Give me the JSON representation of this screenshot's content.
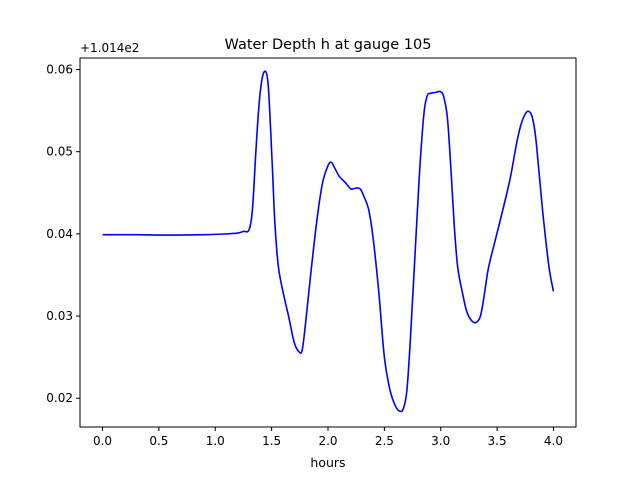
{
  "chart_data": {
    "type": "line",
    "title": "Water Depth h at gauge 105",
    "xlabel": "hours",
    "ylabel": "",
    "offset_label": "+1.014e2",
    "xlim": [
      -0.2,
      4.2
    ],
    "ylim": [
      0.0165,
      0.0614
    ],
    "xticks": [
      0.0,
      0.5,
      1.0,
      1.5,
      2.0,
      2.5,
      3.0,
      3.5,
      4.0
    ],
    "xtick_labels": [
      "0.0",
      "0.5",
      "1.0",
      "1.5",
      "2.0",
      "2.5",
      "3.0",
      "3.5",
      "4.0"
    ],
    "yticks": [
      0.02,
      0.03,
      0.04,
      0.05,
      0.06
    ],
    "ytick_labels": [
      "0.02",
      "0.03",
      "0.04",
      "0.05",
      "0.06"
    ],
    "grid": false,
    "series": [
      {
        "color": "#0000ff",
        "x": [
          0.0,
          0.3,
          0.6,
          0.9,
          1.1,
          1.2,
          1.25,
          1.3,
          1.33,
          1.36,
          1.39,
          1.42,
          1.45,
          1.47,
          1.49,
          1.51,
          1.53,
          1.56,
          1.6,
          1.65,
          1.7,
          1.74,
          1.77,
          1.8,
          1.85,
          1.9,
          1.95,
          2.0,
          2.03,
          2.06,
          2.1,
          2.15,
          2.2,
          2.23,
          2.26,
          2.29,
          2.32,
          2.36,
          2.4,
          2.45,
          2.5,
          2.55,
          2.6,
          2.64,
          2.67,
          2.7,
          2.73,
          2.77,
          2.81,
          2.85,
          2.88,
          2.91,
          2.95,
          3.0,
          3.03,
          3.06,
          3.09,
          3.12,
          3.15,
          3.19,
          3.23,
          3.27,
          3.31,
          3.35,
          3.38,
          3.42,
          3.47,
          3.52,
          3.57,
          3.62,
          3.67,
          3.71,
          3.75,
          3.78,
          3.81,
          3.84,
          3.87,
          3.91,
          3.96,
          4.0
        ],
        "y": [
          0.0399,
          0.0399,
          0.03985,
          0.0399,
          0.04,
          0.0401,
          0.0403,
          0.0405,
          0.043,
          0.05,
          0.056,
          0.0592,
          0.0597,
          0.058,
          0.053,
          0.047,
          0.041,
          0.036,
          0.033,
          0.03,
          0.0268,
          0.0257,
          0.0258,
          0.029,
          0.0355,
          0.0415,
          0.0461,
          0.0483,
          0.0487,
          0.048,
          0.047,
          0.0463,
          0.0455,
          0.0455,
          0.0456,
          0.0454,
          0.0445,
          0.043,
          0.0395,
          0.033,
          0.025,
          0.021,
          0.019,
          0.0184,
          0.0188,
          0.021,
          0.027,
          0.037,
          0.047,
          0.0545,
          0.0568,
          0.0571,
          0.0572,
          0.0573,
          0.0565,
          0.054,
          0.048,
          0.041,
          0.036,
          0.033,
          0.0306,
          0.0295,
          0.0292,
          0.0299,
          0.032,
          0.0356,
          0.0385,
          0.0412,
          0.044,
          0.047,
          0.0508,
          0.0532,
          0.0546,
          0.0549,
          0.0543,
          0.052,
          0.0478,
          0.042,
          0.036,
          0.033
        ]
      }
    ]
  }
}
